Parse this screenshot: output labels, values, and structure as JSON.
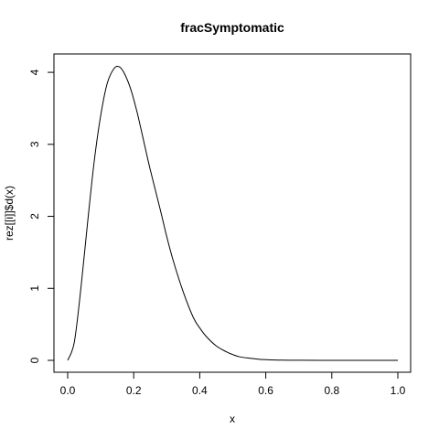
{
  "chart_data": {
    "type": "line",
    "title": "fracSymptomatic",
    "xlabel": "x",
    "ylabel": "rez[[i]]$d(x)",
    "xlim": [
      0,
      1
    ],
    "ylim": [
      0,
      4.09
    ],
    "grid": false,
    "legend": "none",
    "line_color": "#000000",
    "x_ticks": [
      0.0,
      0.2,
      0.4,
      0.6,
      0.8,
      1.0
    ],
    "x_tick_labels": [
      "0.0",
      "0.2",
      "0.4",
      "0.6",
      "0.8",
      "1.0"
    ],
    "y_ticks": [
      0,
      1,
      2,
      3,
      4
    ],
    "y_tick_labels": [
      "0",
      "1",
      "2",
      "3",
      "4"
    ],
    "series": [
      {
        "x": [
          0.0,
          0.02,
          0.04,
          0.06,
          0.08,
          0.1,
          0.12,
          0.14,
          0.155,
          0.17,
          0.19,
          0.21,
          0.23,
          0.25,
          0.28,
          0.3,
          0.32,
          0.35,
          0.38,
          0.4,
          0.42,
          0.45,
          0.48,
          0.5,
          0.52,
          0.55,
          0.58,
          0.6,
          0.65,
          0.7,
          0.8,
          0.9,
          1.0
        ],
        "y": [
          0.0,
          0.25,
          1.0,
          1.9,
          2.75,
          3.4,
          3.85,
          4.05,
          4.08,
          4.0,
          3.78,
          3.45,
          3.05,
          2.65,
          2.1,
          1.72,
          1.38,
          0.95,
          0.6,
          0.45,
          0.33,
          0.2,
          0.12,
          0.08,
          0.05,
          0.03,
          0.015,
          0.01,
          0.003,
          0.001,
          0.0,
          0.0,
          0.0
        ]
      }
    ]
  }
}
